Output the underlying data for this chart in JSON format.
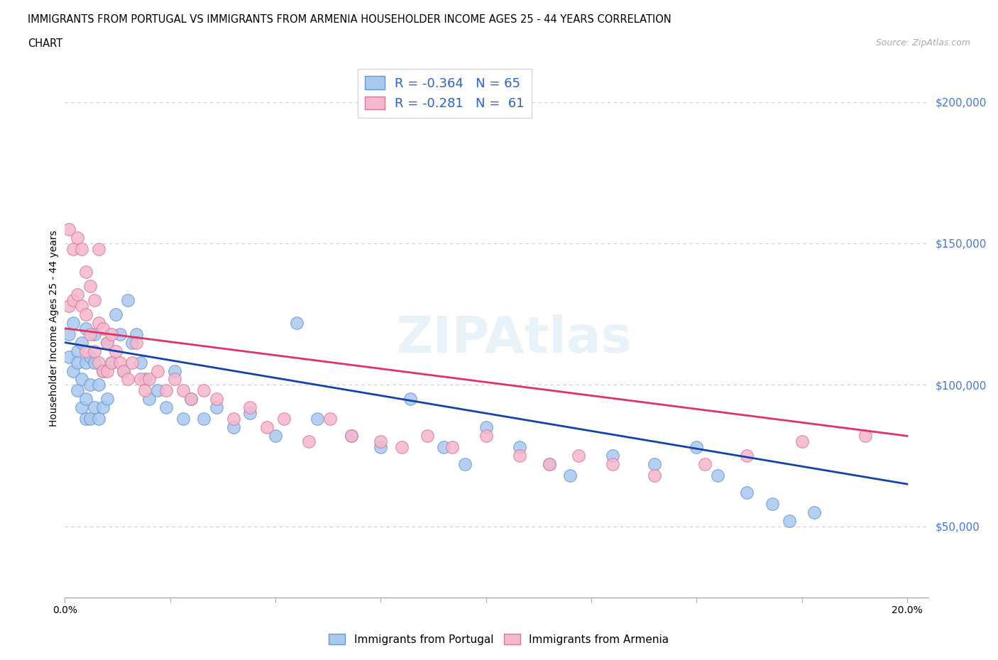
{
  "title_line1": "IMMIGRANTS FROM PORTUGAL VS IMMIGRANTS FROM ARMENIA HOUSEHOLDER INCOME AGES 25 - 44 YEARS CORRELATION",
  "title_line2": "CHART",
  "source_text": "Source: ZipAtlas.com",
  "ylabel": "Householder Income Ages 25 - 44 years",
  "xlim": [
    0.0,
    0.205
  ],
  "ylim": [
    25000,
    215000
  ],
  "xtick_vals": [
    0.0,
    0.025,
    0.05,
    0.075,
    0.1,
    0.125,
    0.15,
    0.175,
    0.2
  ],
  "xtick_labels_show": [
    "0.0%",
    "",
    "",
    "",
    "",
    "",
    "",
    "",
    "20.0%"
  ],
  "ytick_vals": [
    50000,
    100000,
    150000,
    200000
  ],
  "ytick_labels": [
    "$50,000",
    "$100,000",
    "$150,000",
    "$200,000"
  ],
  "portugal_fill": "#A8C8F0",
  "portugal_edge": "#6699CC",
  "armenia_fill": "#F5B8CC",
  "armenia_edge": "#DD7799",
  "trend_portugal": "#1144AA",
  "trend_armenia": "#DD3366",
  "R_portugal": -0.364,
  "N_portugal": 65,
  "R_armenia": -0.281,
  "N_armenia": 61,
  "label_portugal": "Immigrants from Portugal",
  "label_armenia": "Immigrants from Armenia",
  "grid_color": "#CCCCCC",
  "bg": "#FFFFFF",
  "portugal_x": [
    0.001,
    0.001,
    0.002,
    0.002,
    0.003,
    0.003,
    0.003,
    0.004,
    0.004,
    0.004,
    0.005,
    0.005,
    0.005,
    0.005,
    0.006,
    0.006,
    0.006,
    0.007,
    0.007,
    0.007,
    0.008,
    0.008,
    0.009,
    0.009,
    0.01,
    0.01,
    0.011,
    0.012,
    0.013,
    0.014,
    0.015,
    0.016,
    0.017,
    0.018,
    0.019,
    0.02,
    0.022,
    0.024,
    0.026,
    0.028,
    0.03,
    0.033,
    0.036,
    0.04,
    0.044,
    0.05,
    0.055,
    0.06,
    0.068,
    0.075,
    0.082,
    0.09,
    0.095,
    0.1,
    0.108,
    0.115,
    0.12,
    0.13,
    0.14,
    0.15,
    0.155,
    0.162,
    0.168,
    0.172,
    0.178
  ],
  "portugal_y": [
    118000,
    110000,
    122000,
    105000,
    112000,
    98000,
    108000,
    115000,
    102000,
    92000,
    120000,
    108000,
    95000,
    88000,
    110000,
    100000,
    88000,
    108000,
    118000,
    92000,
    100000,
    88000,
    105000,
    92000,
    115000,
    95000,
    108000,
    125000,
    118000,
    105000,
    130000,
    115000,
    118000,
    108000,
    102000,
    95000,
    98000,
    92000,
    105000,
    88000,
    95000,
    88000,
    92000,
    85000,
    90000,
    82000,
    122000,
    88000,
    82000,
    78000,
    95000,
    78000,
    72000,
    85000,
    78000,
    72000,
    68000,
    75000,
    72000,
    78000,
    68000,
    62000,
    58000,
    52000,
    55000
  ],
  "armenia_x": [
    0.001,
    0.001,
    0.002,
    0.002,
    0.003,
    0.003,
    0.004,
    0.004,
    0.005,
    0.005,
    0.005,
    0.006,
    0.006,
    0.007,
    0.007,
    0.008,
    0.008,
    0.008,
    0.009,
    0.009,
    0.01,
    0.01,
    0.011,
    0.011,
    0.012,
    0.013,
    0.014,
    0.015,
    0.016,
    0.017,
    0.018,
    0.019,
    0.02,
    0.022,
    0.024,
    0.026,
    0.028,
    0.03,
    0.033,
    0.036,
    0.04,
    0.044,
    0.048,
    0.052,
    0.058,
    0.063,
    0.068,
    0.075,
    0.08,
    0.086,
    0.092,
    0.1,
    0.108,
    0.115,
    0.122,
    0.13,
    0.14,
    0.152,
    0.162,
    0.175,
    0.19
  ],
  "armenia_y": [
    155000,
    128000,
    148000,
    130000,
    152000,
    132000,
    148000,
    128000,
    140000,
    125000,
    112000,
    135000,
    118000,
    130000,
    112000,
    148000,
    122000,
    108000,
    120000,
    105000,
    115000,
    105000,
    118000,
    108000,
    112000,
    108000,
    105000,
    102000,
    108000,
    115000,
    102000,
    98000,
    102000,
    105000,
    98000,
    102000,
    98000,
    95000,
    98000,
    95000,
    88000,
    92000,
    85000,
    88000,
    80000,
    88000,
    82000,
    80000,
    78000,
    82000,
    78000,
    82000,
    75000,
    72000,
    75000,
    72000,
    68000,
    72000,
    75000,
    80000,
    82000
  ]
}
